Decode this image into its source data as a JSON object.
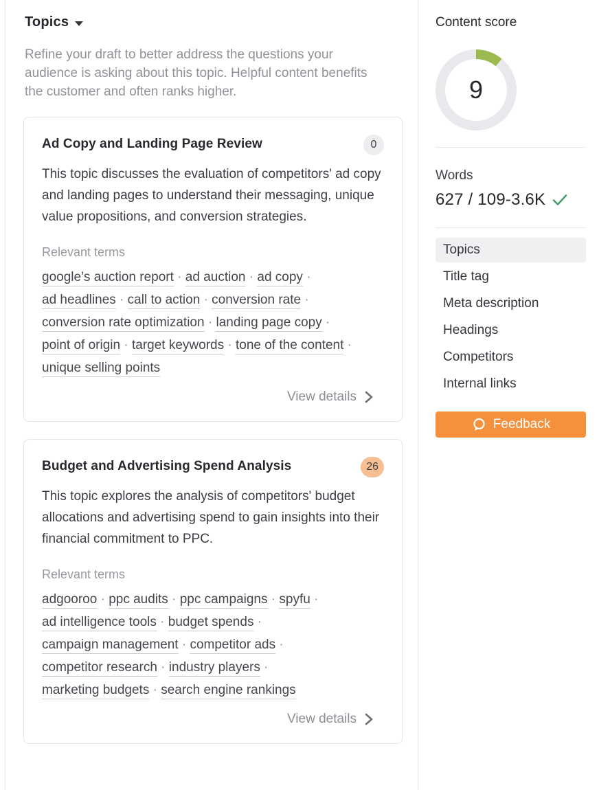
{
  "panel": {
    "title": "Topics",
    "intro": "Refine your draft to better address the questions your audience is asking about this topic. Helpful content benefits the customer and often ranks higher."
  },
  "cards": [
    {
      "title": "Ad Copy and Landing Page Review",
      "badge": "0",
      "badge_color": "#ededef",
      "description": "This topic discusses the evaluation of competitors' ad copy and landing pages to understand their messaging, unique value propositions, and conversion strategies.",
      "relevant_terms_label": "Relevant terms",
      "terms": [
        "google’s auction report",
        "ad auction",
        "ad copy",
        "ad headlines",
        "call to action",
        "conversion rate",
        "conversion rate optimization",
        "landing page copy",
        "point of origin",
        "target keywords",
        "tone of the content",
        "unique selling points"
      ],
      "view_details_label": "View details"
    },
    {
      "title": "Budget and Advertising Spend Analysis",
      "badge": "26",
      "badge_color": "#f6c094",
      "description": "This topic explores the analysis of competitors' budget allocations and advertising spend to gain insights into their financial commitment to PPC.",
      "relevant_terms_label": "Relevant terms",
      "terms": [
        "adgooroo",
        "ppc audits",
        "ppc campaigns",
        "spyfu",
        "ad intelligence tools",
        "budget spends",
        "campaign management",
        "competitor ads",
        "competitor research",
        "industry players",
        "marketing budgets",
        "search engine rankings"
      ],
      "view_details_label": "View details"
    }
  ],
  "sidebar": {
    "content_score": {
      "label": "Content score",
      "value": "9",
      "fill_percent": 11,
      "accent_color": "#9cba4f",
      "track_color": "#e9e9ed"
    },
    "words": {
      "label": "Words",
      "value": "627 / 109-3.6K",
      "check_color": "#45a06b"
    },
    "nav": [
      {
        "label": "Topics",
        "selected": true
      },
      {
        "label": "Title tag",
        "selected": false
      },
      {
        "label": "Meta description",
        "selected": false
      },
      {
        "label": "Headings",
        "selected": false
      },
      {
        "label": "Competitors",
        "selected": false
      },
      {
        "label": "Internal links",
        "selected": false
      }
    ],
    "feedback": {
      "label": "Feedback",
      "color": "#f5913d"
    }
  }
}
